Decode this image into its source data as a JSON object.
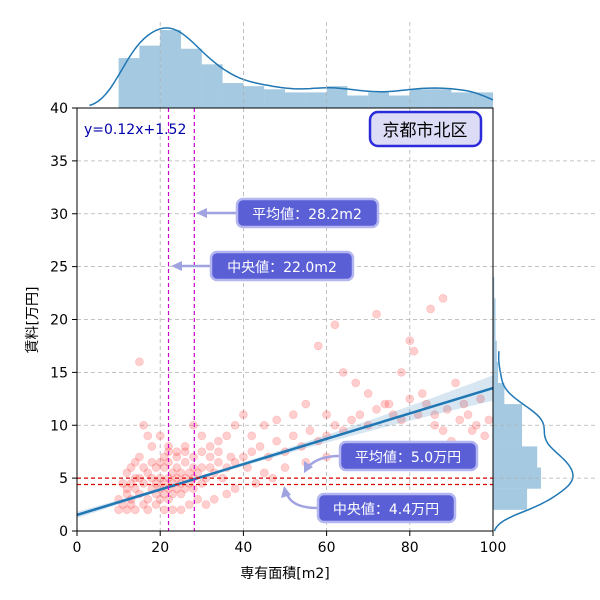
{
  "chart_data": {
    "type": "scatter",
    "title": "京都市北区",
    "xlabel": "専有面積[m2]",
    "ylabel": "賃料[万円]",
    "xlim": [
      0,
      100
    ],
    "ylim": [
      0,
      40
    ],
    "x_ticks": [
      0,
      20,
      40,
      60,
      80,
      100
    ],
    "y_ticks": [
      0,
      5,
      10,
      15,
      20,
      25,
      30,
      35,
      40
    ],
    "grid": true,
    "regression": {
      "label": "y=0.12x+1.52",
      "slope": 0.12,
      "intercept": 1.52,
      "x_range": [
        0,
        100
      ]
    },
    "reference_lines": {
      "mean_x": 28.2,
      "median_x": 22.0,
      "mean_y": 5.0,
      "median_y": 4.4
    },
    "annotations": [
      {
        "text": "平均値：28.2m2",
        "arrow_to": [
          28.2,
          30
        ]
      },
      {
        "text": "中央値：22.0m2",
        "arrow_to": [
          22.0,
          25
        ]
      },
      {
        "text": "平均値：5.0万円",
        "arrow_to": [
          55,
          5.0
        ]
      },
      {
        "text": "中央値：4.4万円",
        "arrow_to": [
          50,
          4.4
        ]
      }
    ],
    "points": [
      [
        15,
        16
      ],
      [
        58,
        17.5
      ],
      [
        62,
        19.5
      ],
      [
        72,
        20.5
      ],
      [
        80,
        18
      ],
      [
        81,
        17
      ],
      [
        88,
        22
      ],
      [
        85,
        21
      ],
      [
        64,
        15
      ],
      [
        67,
        14
      ],
      [
        70,
        13
      ],
      [
        75,
        12
      ],
      [
        78,
        15
      ],
      [
        83,
        13
      ],
      [
        91,
        14
      ],
      [
        93,
        12
      ],
      [
        89,
        11.5
      ],
      [
        86,
        11
      ],
      [
        96,
        10
      ],
      [
        98,
        9
      ],
      [
        95,
        9.5
      ],
      [
        90,
        8.5
      ],
      [
        60,
        11
      ],
      [
        55,
        12
      ],
      [
        52,
        11
      ],
      [
        48,
        10.5
      ],
      [
        45,
        10
      ],
      [
        42,
        9
      ],
      [
        40,
        11
      ],
      [
        38,
        10
      ],
      [
        36,
        9
      ],
      [
        34,
        8.5
      ],
      [
        32,
        8
      ],
      [
        30,
        9
      ],
      [
        28,
        10
      ],
      [
        26,
        8
      ],
      [
        24,
        7.5
      ],
      [
        22,
        8
      ],
      [
        20,
        9
      ],
      [
        18,
        8
      ],
      [
        17,
        9
      ],
      [
        16,
        10
      ],
      [
        15,
        7
      ],
      [
        14,
        6.5
      ],
      [
        13,
        6
      ],
      [
        12,
        5.5
      ],
      [
        11,
        4.5
      ],
      [
        10,
        3
      ],
      [
        10,
        2
      ],
      [
        11,
        2.5
      ],
      [
        12,
        3.5
      ],
      [
        13,
        3
      ],
      [
        14,
        4
      ],
      [
        15,
        3.5
      ],
      [
        16,
        4.5
      ],
      [
        17,
        3
      ],
      [
        18,
        4
      ],
      [
        18,
        5
      ],
      [
        19,
        3.5
      ],
      [
        19,
        4.5
      ],
      [
        20,
        3
      ],
      [
        20,
        4
      ],
      [
        20,
        5
      ],
      [
        21,
        3.5
      ],
      [
        21,
        4.5
      ],
      [
        21,
        6
      ],
      [
        22,
        3
      ],
      [
        22,
        4
      ],
      [
        22,
        5
      ],
      [
        22,
        6.5
      ],
      [
        23,
        3.5
      ],
      [
        23,
        4.5
      ],
      [
        23,
        5.5
      ],
      [
        24,
        4
      ],
      [
        24,
        5
      ],
      [
        24,
        6
      ],
      [
        25,
        3.5
      ],
      [
        25,
        4.5
      ],
      [
        25,
        5.5
      ],
      [
        26,
        4
      ],
      [
        26,
        5
      ],
      [
        26,
        6.5
      ],
      [
        27,
        4.5
      ],
      [
        27,
        5.5
      ],
      [
        28,
        4
      ],
      [
        28,
        5
      ],
      [
        28,
        6
      ],
      [
        29,
        5.5
      ],
      [
        30,
        4.5
      ],
      [
        30,
        6
      ],
      [
        31,
        5
      ],
      [
        32,
        6
      ],
      [
        33,
        5.5
      ],
      [
        34,
        6.5
      ],
      [
        35,
        5
      ],
      [
        36,
        6
      ],
      [
        37,
        7
      ],
      [
        38,
        6.5
      ],
      [
        40,
        7
      ],
      [
        41,
        6
      ],
      [
        42,
        7.5
      ],
      [
        44,
        8
      ],
      [
        46,
        7
      ],
      [
        48,
        8.5
      ],
      [
        50,
        7.5
      ],
      [
        52,
        9
      ],
      [
        54,
        8
      ],
      [
        56,
        9.5
      ],
      [
        58,
        8.5
      ],
      [
        60,
        9
      ],
      [
        62,
        10
      ],
      [
        64,
        9.5
      ],
      [
        66,
        10.5
      ],
      [
        68,
        11
      ],
      [
        70,
        10
      ],
      [
        72,
        11.5
      ],
      [
        74,
        12
      ],
      [
        76,
        11
      ],
      [
        78,
        10.5
      ],
      [
        80,
        12.5
      ],
      [
        82,
        11
      ],
      [
        84,
        12
      ],
      [
        86,
        10
      ],
      [
        88,
        9.5
      ],
      [
        92,
        10.5
      ],
      [
        94,
        11
      ],
      [
        97,
        12.5
      ],
      [
        99,
        10.5
      ],
      [
        45,
        5.5
      ],
      [
        50,
        6
      ],
      [
        55,
        6.5
      ],
      [
        60,
        7
      ],
      [
        65,
        8
      ],
      [
        43,
        4.5
      ],
      [
        47,
        5
      ],
      [
        38,
        4
      ],
      [
        36,
        3.5
      ],
      [
        33,
        3
      ],
      [
        31,
        2.5
      ],
      [
        29,
        3
      ],
      [
        27,
        2.5
      ],
      [
        25,
        2
      ],
      [
        23,
        2
      ],
      [
        21,
        2
      ],
      [
        19,
        2.5
      ],
      [
        17,
        2
      ],
      [
        16,
        2.5
      ],
      [
        14,
        2
      ],
      [
        13,
        2.5
      ],
      [
        12,
        2
      ],
      [
        24,
        7
      ],
      [
        26,
        7.5
      ],
      [
        28,
        7
      ],
      [
        30,
        7.5
      ],
      [
        32,
        7
      ],
      [
        34,
        7.5
      ],
      [
        19,
        6
      ],
      [
        20,
        6.5
      ],
      [
        21,
        7
      ],
      [
        22,
        7.5
      ],
      [
        18,
        6.5
      ],
      [
        17,
        5.5
      ],
      [
        16,
        6
      ],
      [
        15,
        5
      ],
      [
        14,
        5
      ],
      [
        13,
        4.5
      ],
      [
        12,
        4
      ]
    ]
  }
}
